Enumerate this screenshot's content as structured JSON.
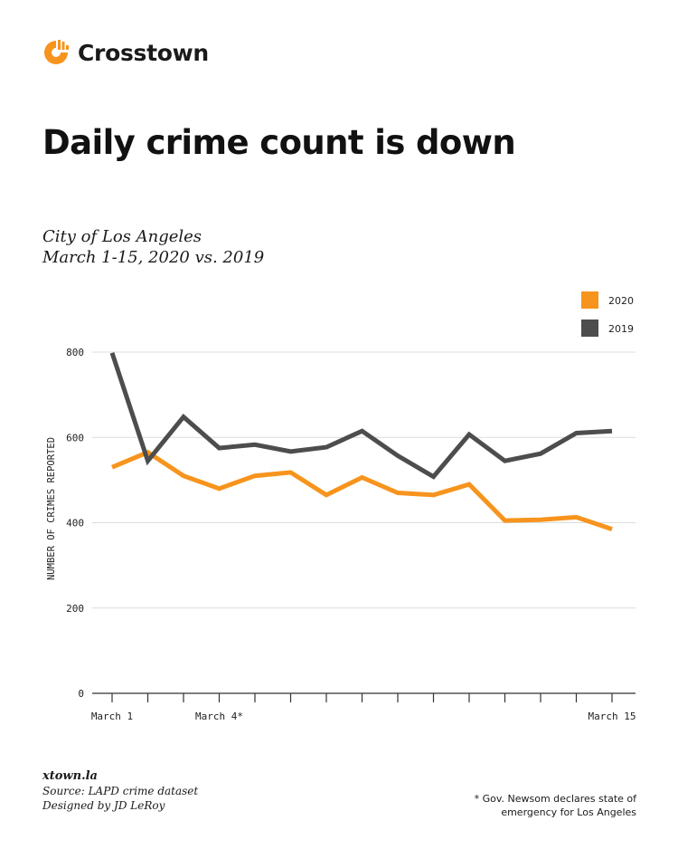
{
  "brand": {
    "name": "Crosstown",
    "logo_icon": "crosstown-logo-icon",
    "accent_color": "#F7941D"
  },
  "title": "Daily crime count is down",
  "subtitle": {
    "line1": "City of Los Angeles",
    "line2": "March 1-15, 2020 vs. 2019"
  },
  "chart_data": {
    "type": "line",
    "title": "",
    "xlabel": "",
    "ylabel": "NUMBER OF CRIMES REPORTED",
    "x": [
      1,
      2,
      3,
      4,
      5,
      6,
      7,
      8,
      9,
      10,
      11,
      12,
      13,
      14,
      15
    ],
    "x_tick_labels": [
      {
        "x": 1,
        "label": "March 1"
      },
      {
        "x": 4,
        "label": "March 4*"
      },
      {
        "x": 15,
        "label": "March 15"
      }
    ],
    "yticks": [
      0,
      200,
      400,
      600,
      800
    ],
    "ylim": [
      0,
      800
    ],
    "grid": true,
    "legend_position": "top-right",
    "series": [
      {
        "name": "2020",
        "color": "#F7941D",
        "values": [
          530,
          565,
          510,
          480,
          510,
          518,
          465,
          506,
          470,
          465,
          490,
          405,
          407,
          413,
          385
        ]
      },
      {
        "name": "2019",
        "color": "#4D4D4D",
        "values": [
          798,
          545,
          648,
          575,
          583,
          567,
          577,
          615,
          557,
          508,
          607,
          545,
          562,
          610,
          615
        ]
      }
    ]
  },
  "footer": {
    "site": "xtown.la",
    "source": "Source: LAPD crime dataset",
    "designer": "Designed by JD LeRoy"
  },
  "footnote": {
    "line1": "* Gov. Newsom  declares state of",
    "line2": "emergency for Los Angeles"
  }
}
